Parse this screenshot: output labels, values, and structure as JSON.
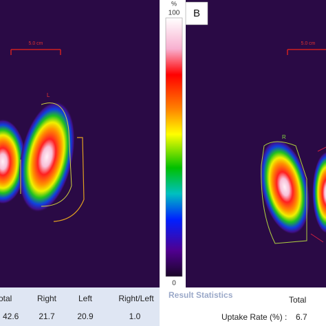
{
  "left_panel": {
    "scale_label": "5.0 cm",
    "roi_label": "L",
    "table": {
      "headers": [
        "otal",
        "Right",
        "Left",
        "Right/Left"
      ],
      "values": [
        "42.6",
        "21.7",
        "20.9",
        "1.0"
      ]
    }
  },
  "colorbar": {
    "unit": "%",
    "max_label": "100",
    "min_label": "0"
  },
  "right_panel": {
    "panel_label": "B",
    "scale_label": "5.0 cm",
    "roi_label": "R",
    "stats_title": "Result Statistics",
    "column_header": "Total",
    "row_label": "Uptake Rate (%) :",
    "row_value": "6.7"
  }
}
